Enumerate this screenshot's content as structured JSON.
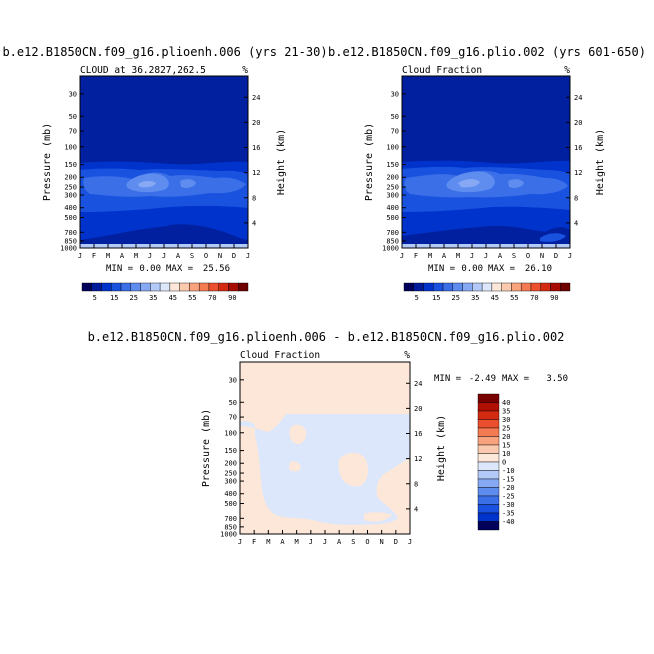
{
  "figure": {
    "bottom_title": "b.e12.B1850CN.f09_g16.plioenh.006 - b.e12.B1850CN.f09_g16.plio.002"
  },
  "chart_data": [
    {
      "type": "contour",
      "title": "b.e12.B1850CN.f09_g16.plioenh.006 (yrs 21-30)",
      "subtitle": "CLOUD at 36.2827,262.5",
      "units": "%",
      "ylabel": "Pressure (mb)",
      "y2label": "Height (km)",
      "x": [
        "J",
        "F",
        "M",
        "A",
        "M",
        "J",
        "J",
        "A",
        "S",
        "O",
        "N",
        "D",
        "J"
      ],
      "y_ticks": [
        "30",
        "50",
        "70",
        "100",
        "150",
        "200",
        "250",
        "300",
        "400",
        "500",
        "700",
        "850",
        "1000"
      ],
      "y2_ticks": [
        "24",
        "20",
        "16",
        "12",
        "8",
        "4"
      ],
      "min_label": "MIN =",
      "min_value": "0.00",
      "max_label": "MAX =",
      "max_value": "25.56",
      "cloud_layer": {
        "levels_mb": [
          200,
          250,
          300
        ],
        "max_near": "Jun, 250 mb"
      }
    },
    {
      "type": "contour",
      "title": "b.e12.B1850CN.f09_g16.plio.002 (yrs 601-650)",
      "subtitle": "Cloud Fraction",
      "units": "%",
      "ylabel": "Pressure (mb)",
      "y2label": "Height (km)",
      "x": [
        "J",
        "F",
        "M",
        "A",
        "M",
        "J",
        "J",
        "A",
        "S",
        "O",
        "N",
        "D",
        "J"
      ],
      "y_ticks": [
        "30",
        "50",
        "70",
        "100",
        "150",
        "200",
        "250",
        "300",
        "400",
        "500",
        "700",
        "850",
        "1000"
      ],
      "y2_ticks": [
        "24",
        "20",
        "16",
        "12",
        "8",
        "4"
      ],
      "min_label": "MIN =",
      "min_value": "0.00",
      "max_label": "MAX =",
      "max_value": "26.10",
      "cloud_layer": {
        "levels_mb": [
          200,
          250,
          300
        ],
        "max_near": "Jun, 250 mb"
      }
    },
    {
      "type": "contour",
      "title": "",
      "subtitle": "Cloud Fraction",
      "units": "%",
      "ylabel": "Pressure (mb)",
      "y2label": "Height (km)",
      "x": [
        "J",
        "F",
        "M",
        "A",
        "M",
        "J",
        "J",
        "A",
        "S",
        "O",
        "N",
        "D",
        "J"
      ],
      "y_ticks": [
        "30",
        "50",
        "70",
        "100",
        "150",
        "200",
        "250",
        "300",
        "400",
        "500",
        "700",
        "850",
        "1000"
      ],
      "y2_ticks": [
        "24",
        "20",
        "16",
        "12",
        "8",
        "4"
      ],
      "min_label": "MIN =",
      "min_value": "-2.49",
      "max_label": "MAX =",
      "max_value": "3.50",
      "regions": {
        "upper": "0 to 10 (stratosphere, above ~100 mb)",
        "lower": "-10 to 0 over most of the troposphere, with 0 to 10 patches in Jan-Feb and Oct-Dec"
      }
    }
  ],
  "colorbar_top": {
    "labels": [
      "5",
      "15",
      "25",
      "35",
      "45",
      "55",
      "70",
      "90"
    ],
    "colors": [
      "#00005a",
      "#001a99",
      "#0033cc",
      "#1a52e0",
      "#3a6fe8",
      "#5e8cef",
      "#87a9f4",
      "#b3c9f8",
      "#dde7fb",
      "#fde7d8",
      "#fbc9ad",
      "#f8a37e",
      "#f47a52",
      "#ec4f2d",
      "#d32a12",
      "#a60c02",
      "#6e0000"
    ]
  },
  "colorbar_diff": {
    "labels": [
      "40",
      "35",
      "30",
      "25",
      "20",
      "15",
      "10",
      "0",
      "-10",
      "-15",
      "-20",
      "-25",
      "-30",
      "-35",
      "-40"
    ],
    "colors": [
      "#7a0000",
      "#b01002",
      "#d32a12",
      "#ec4f2d",
      "#f47a52",
      "#f8a37e",
      "#fbc9ad",
      "#fde7d8",
      "#dde7fb",
      "#b3c9f8",
      "#87a9f4",
      "#5e8cef",
      "#3a6fe8",
      "#1a52e0",
      "#0033cc",
      "#00005a"
    ]
  },
  "colors": {
    "cloud_bg": "#00209f",
    "cloud_l1": "#0033cc",
    "cloud_l2": "#1a52e0",
    "cloud_l3": "#3a6fe8",
    "cloud_l4": "#5e8cef",
    "cloud_l5": "#87a9f4",
    "diff_pos": "#fde7d8",
    "diff_neg": "#dde7fb",
    "surface": "#b3c9f8"
  }
}
